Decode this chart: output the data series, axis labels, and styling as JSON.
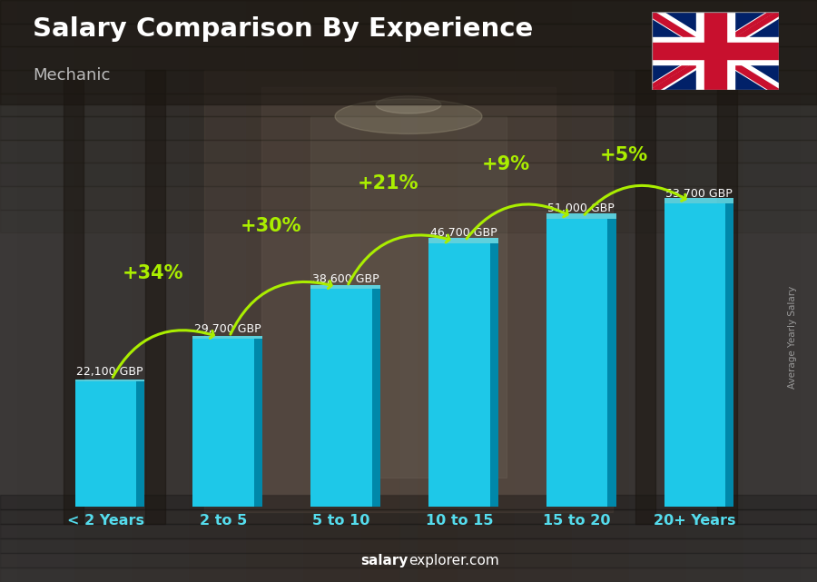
{
  "title": "Salary Comparison By Experience",
  "subtitle": "Mechanic",
  "categories": [
    "< 2 Years",
    "2 to 5",
    "5 to 10",
    "10 to 15",
    "15 to 20",
    "20+ Years"
  ],
  "values": [
    22100,
    29700,
    38600,
    46700,
    51000,
    53700
  ],
  "salary_labels": [
    "22,100 GBP",
    "29,700 GBP",
    "38,600 GBP",
    "46,700 GBP",
    "51,000 GBP",
    "53,700 GBP"
  ],
  "pct_changes": [
    "+34%",
    "+30%",
    "+21%",
    "+9%",
    "+5%"
  ],
  "bar_color_main": "#1EC8E8",
  "bar_color_dark": "#0088AA",
  "bar_color_top": "#60E8F8",
  "pct_color": "#AAEE00",
  "xtick_color": "#55DDEE",
  "title_color": "#FFFFFF",
  "subtitle_color": "#BBBBBB",
  "salary_color": "#FFFFFF",
  "ylabel_text": "Average Yearly Salary",
  "source_bold": "salary",
  "source_regular": "explorer.com",
  "ylim": [
    0,
    65000
  ],
  "figsize": [
    9.0,
    6.41
  ],
  "dpi": 100
}
